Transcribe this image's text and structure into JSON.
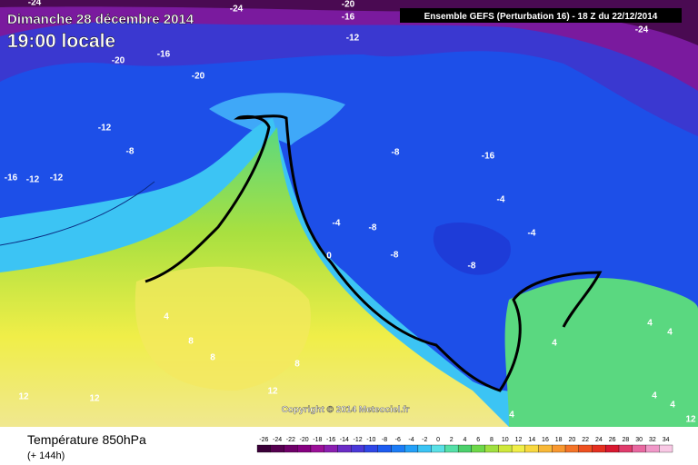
{
  "header": {
    "date": "Dimanche 28 décembre 2014",
    "time": "19:00 locale"
  },
  "run_info": "Ensemble GEFS  (Perturbation 16)  -  18 Z du 22/12/2014",
  "contour_labels": [
    -24,
    -24,
    -20,
    -16,
    -12,
    -24,
    -20,
    -16,
    -20,
    -12,
    -8,
    -16,
    -12,
    -12,
    -8,
    -16,
    -4,
    -4,
    -8,
    -4,
    -8,
    -8,
    0,
    4,
    8,
    8,
    8,
    12,
    12,
    12,
    4,
    4,
    4,
    4,
    4,
    4,
    12
  ],
  "copyright": "Copyright © 2014 Meteociel.fr",
  "footer": {
    "title": "Température 850hPa",
    "lead": "(+ 144h)"
  },
  "scale": {
    "values": [
      -26,
      -24,
      -22,
      -20,
      -18,
      -16,
      -14,
      -12,
      -10,
      -8,
      -6,
      -4,
      -2,
      0,
      2,
      4,
      6,
      8,
      10,
      12,
      14,
      16,
      18,
      20,
      22,
      24,
      26,
      28,
      30,
      32,
      34
    ],
    "colors": [
      "#3a0038",
      "#55004f",
      "#6e0068",
      "#860080",
      "#9b1098",
      "#8a1fb0",
      "#6a2cc6",
      "#4a38d8",
      "#2f46e6",
      "#1d5cf0",
      "#1c7cf6",
      "#24a0f8",
      "#3cc4f4",
      "#5ae0e6",
      "#55e0a8",
      "#4cd06c",
      "#6ed84a",
      "#a0e040",
      "#cfe83c",
      "#f0ee48",
      "#f8d840",
      "#f8b838",
      "#f89830",
      "#f47428",
      "#ee5020",
      "#e43020",
      "#d81830",
      "#e03c6c",
      "#e868a0",
      "#f098c8",
      "#f8c8e4"
    ]
  }
}
